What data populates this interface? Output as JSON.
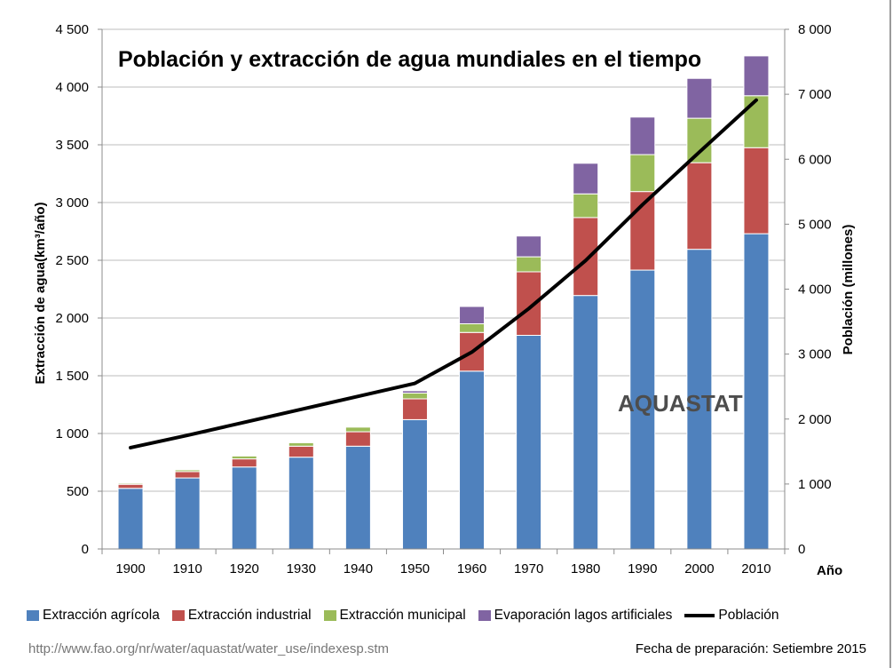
{
  "chart_data": {
    "type": "bar",
    "stacked": true,
    "title": "Población y extracción de agua mundiales en el tiempo",
    "categories": [
      "1900",
      "1910",
      "1920",
      "1930",
      "1940",
      "1950",
      "1960",
      "1970",
      "1980",
      "1990",
      "2000",
      "2010"
    ],
    "xlabel": "Año",
    "ylabel": "Extracción de agua(km³/año)",
    "y2label": "Población (millones)",
    "ylim": [
      0,
      4500
    ],
    "y2lim": [
      0,
      8000
    ],
    "yticks": [
      "0",
      "500",
      "1 000",
      "1 500",
      "2 000",
      "2 500",
      "3 000",
      "3 500",
      "4 000",
      "4 500"
    ],
    "y2ticks": [
      "0",
      "1 000",
      "2 000",
      "3 000",
      "4 000",
      "5 000",
      "6 000",
      "7 000",
      "8 000"
    ],
    "grid": true,
    "legend_position": "bottom",
    "series": [
      {
        "name": "Extracción agrícola",
        "color": "#4f81bd",
        "values": [
          525,
          615,
          710,
          795,
          890,
          1120,
          1540,
          1850,
          2195,
          2415,
          2595,
          2730
        ]
      },
      {
        "name": "Extracción industrial",
        "color": "#c0504d",
        "values": [
          35,
          55,
          70,
          95,
          125,
          180,
          335,
          550,
          675,
          680,
          750,
          745
        ]
      },
      {
        "name": "Extracción municipal",
        "color": "#9bbb59",
        "values": [
          10,
          15,
          25,
          30,
          40,
          50,
          75,
          130,
          205,
          320,
          385,
          450
        ]
      },
      {
        "name": "Evaporación lagos artificiales",
        "color": "#8064a2",
        "values": [
          0,
          0,
          0,
          0,
          0,
          20,
          150,
          180,
          265,
          325,
          345,
          345
        ]
      }
    ],
    "line_series": {
      "name": "Población",
      "color": "#000000",
      "axis": "right",
      "values": [
        1560,
        1750,
        1950,
        2150,
        2350,
        2550,
        3030,
        3700,
        4440,
        5300,
        6110,
        6910
      ]
    }
  },
  "watermark": "AQUASTAT",
  "footer": {
    "source_url": "http://www.fao.org/nr/water/aquastat/water_use/indexesp.stm",
    "prepared": "Fecha de preparación: Setiembre 2015"
  }
}
